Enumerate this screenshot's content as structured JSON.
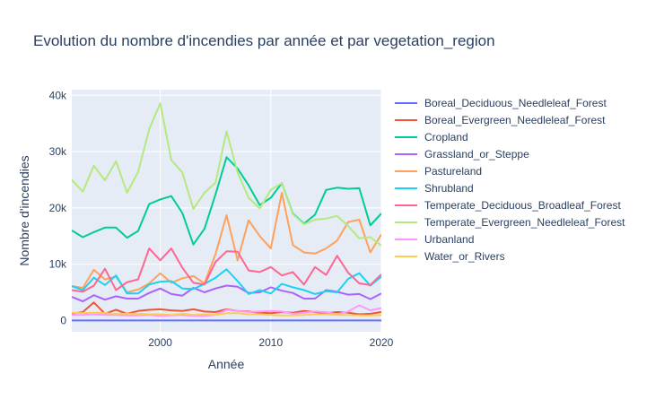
{
  "chart_data": {
    "type": "line",
    "title": "Evolution du nombre d'incendies par année et par vegetation_region",
    "xlabel": "Année",
    "ylabel": "Nombre d'incendies",
    "xlim": [
      1992,
      2020
    ],
    "ylim": [
      -2000,
      41000
    ],
    "x_ticks": [
      2000,
      2010,
      2020
    ],
    "x_tick_labels": [
      "2000",
      "2010",
      "2020"
    ],
    "y_ticks": [
      0,
      10000,
      20000,
      30000,
      40000
    ],
    "y_tick_labels": [
      "0",
      "10k",
      "20k",
      "30k",
      "40k"
    ],
    "grid": true,
    "legend_position": "right",
    "x": [
      1992,
      1993,
      1994,
      1995,
      1996,
      1997,
      1998,
      1999,
      2000,
      2001,
      2002,
      2003,
      2004,
      2005,
      2006,
      2007,
      2008,
      2009,
      2010,
      2011,
      2012,
      2013,
      2014,
      2015,
      2016,
      2017,
      2018,
      2019,
      2020
    ],
    "series": [
      {
        "name": "Boreal_Deciduous_Needleleaf_Forest",
        "color": "#636efa",
        "values": [
          10,
          10,
          10,
          10,
          10,
          10,
          10,
          10,
          10,
          10,
          10,
          10,
          10,
          10,
          10,
          10,
          10,
          10,
          10,
          10,
          10,
          10,
          10,
          10,
          10,
          10,
          10,
          10,
          10
        ]
      },
      {
        "name": "Boreal_Evergreen_Needleleaf_Forest",
        "color": "#ef553b",
        "values": [
          1200,
          1500,
          3200,
          1200,
          1900,
          1200,
          1700,
          1900,
          2000,
          1800,
          1700,
          2000,
          1600,
          1500,
          2000,
          1700,
          1600,
          1400,
          1300,
          1500,
          1400,
          1700,
          1500,
          1300,
          1500,
          1400,
          1100,
          1200,
          1500
        ]
      },
      {
        "name": "Cropland",
        "color": "#00cc96",
        "values": [
          16000,
          14800,
          15700,
          16500,
          16500,
          14700,
          15900,
          20700,
          21500,
          22100,
          19100,
          13500,
          16300,
          22400,
          29000,
          27000,
          24000,
          20500,
          21800,
          24400,
          19000,
          17200,
          18800,
          23200,
          23600,
          23400,
          23500,
          16900,
          19000
        ]
      },
      {
        "name": "Grassland_or_Steppe",
        "color": "#ab63fa",
        "values": [
          4200,
          3400,
          4500,
          3700,
          4300,
          3900,
          3900,
          4900,
          5700,
          4700,
          4400,
          5800,
          5000,
          5700,
          6200,
          6000,
          4900,
          5000,
          5900,
          5300,
          4900,
          3900,
          3900,
          5400,
          5100,
          4600,
          4700,
          3800,
          4800
        ]
      },
      {
        "name": "Pastureland",
        "color": "#ffa15a",
        "values": [
          6100,
          5800,
          9000,
          7300,
          7800,
          5000,
          5500,
          6600,
          8400,
          6700,
          7500,
          7900,
          6600,
          11800,
          18700,
          10700,
          17800,
          15000,
          12800,
          22700,
          13400,
          12100,
          11900,
          12800,
          14200,
          17500,
          17900,
          12100,
          15300
        ]
      },
      {
        "name": "Shrubland",
        "color": "#19d3f3",
        "values": [
          6100,
          5400,
          7600,
          6300,
          8000,
          4800,
          4800,
          6400,
          6900,
          7000,
          5700,
          5600,
          6500,
          7600,
          9100,
          7000,
          4700,
          5400,
          4800,
          6500,
          5900,
          5400,
          4700,
          5200,
          5000,
          7400,
          8400,
          6200,
          7800
        ]
      },
      {
        "name": "Temperate_Deciduous_Broadleaf_Forest",
        "color": "#ff6692",
        "values": [
          5400,
          5100,
          6200,
          9200,
          5400,
          6800,
          7300,
          12800,
          10700,
          12800,
          9400,
          6700,
          6400,
          10400,
          12300,
          12200,
          8900,
          8600,
          9500,
          8000,
          8600,
          6400,
          9500,
          8100,
          11500,
          8500,
          6600,
          6300,
          8200
        ]
      },
      {
        "name": "Temperate_Evergreen_Needleleaf_Forest",
        "color": "#b6e880",
        "values": [
          25000,
          22900,
          27500,
          24900,
          28300,
          22700,
          26400,
          34000,
          38600,
          28500,
          26300,
          19800,
          22700,
          24500,
          33600,
          26300,
          21800,
          19900,
          23200,
          24400,
          18900,
          17100,
          17900,
          18100,
          18600,
          16800,
          14600,
          14800,
          13300
        ]
      },
      {
        "name": "Urbanland",
        "color": "#ff97ff",
        "values": [
          1000,
          1000,
          1100,
          1000,
          1000,
          900,
          900,
          1000,
          800,
          900,
          1000,
          800,
          800,
          1000,
          1900,
          1700,
          1500,
          1600,
          1700,
          1600,
          1200,
          1400,
          1600,
          1500,
          1100,
          1600,
          2700,
          1800,
          2200
        ]
      },
      {
        "name": "Water_or_Rivers",
        "color": "#fecb52",
        "values": [
          1400,
          1300,
          1400,
          1300,
          1200,
          1200,
          1200,
          1100,
          1100,
          1000,
          1200,
          1000,
          1100,
          1000,
          1300,
          1300,
          1100,
          1100,
          1000,
          900,
          900,
          1000,
          1100,
          1100,
          1000,
          1000,
          900,
          900,
          1000
        ]
      }
    ]
  }
}
